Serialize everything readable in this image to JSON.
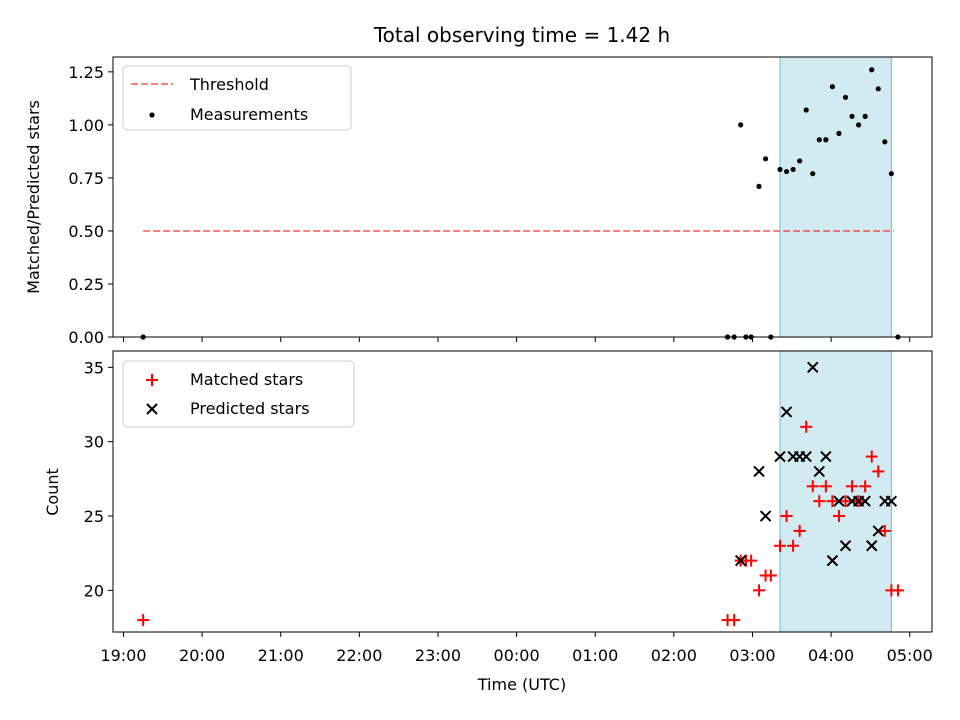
{
  "chart_data": [
    {
      "type": "scatter",
      "title": "Total observing time = 1.42 h",
      "ylabel": "Matched/Predicted stars",
      "xlabel": "",
      "xlim": [
        "18:52",
        "05:17"
      ],
      "ylim": [
        0,
        1.32
      ],
      "yticks": [
        "0.00",
        "0.25",
        "0.50",
        "0.75",
        "1.00",
        "1.25"
      ],
      "yticks_values": [
        0,
        0.25,
        0.5,
        0.75,
        1.0,
        1.25
      ],
      "legend_position": "upper-left",
      "highlight_span": {
        "from": "03:21",
        "to": "04:46",
        "color": "#add8e6"
      },
      "threshold": {
        "name": "Threshold",
        "value": 0.5,
        "from": "19:15",
        "to": "04:48",
        "color": "#ff0000",
        "style": "dashed"
      },
      "series": [
        {
          "name": "Measurements",
          "marker": "dot",
          "color": "#000000",
          "points": [
            [
              "19:15",
              0.0
            ],
            [
              "02:41",
              0.0
            ],
            [
              "02:46",
              0.0
            ],
            [
              "02:51",
              1.0
            ],
            [
              "02:55",
              0.0
            ],
            [
              "02:59",
              0.0
            ],
            [
              "03:05",
              0.71
            ],
            [
              "03:10",
              0.84
            ],
            [
              "03:14",
              0.0
            ],
            [
              "03:21",
              0.79
            ],
            [
              "03:26",
              0.78
            ],
            [
              "03:31",
              0.79
            ],
            [
              "03:36",
              0.83
            ],
            [
              "03:41",
              1.07
            ],
            [
              "03:46",
              0.77
            ],
            [
              "03:51",
              0.93
            ],
            [
              "03:56",
              0.93
            ],
            [
              "04:01",
              1.18
            ],
            [
              "04:06",
              0.96
            ],
            [
              "04:11",
              1.13
            ],
            [
              "04:16",
              1.04
            ],
            [
              "04:21",
              1.0
            ],
            [
              "04:26",
              1.04
            ],
            [
              "04:31",
              1.26
            ],
            [
              "04:36",
              1.17
            ],
            [
              "04:41",
              0.92
            ],
            [
              "04:46",
              0.77
            ],
            [
              "04:51",
              0.0
            ]
          ]
        }
      ]
    },
    {
      "type": "scatter",
      "title": "",
      "ylabel": "Count",
      "xlabel": "Time (UTC)",
      "xlim": [
        "18:52",
        "05:17"
      ],
      "ylim": [
        17.2,
        36.1
      ],
      "yticks": [
        "20",
        "25",
        "30",
        "35"
      ],
      "yticks_values": [
        20,
        25,
        30,
        35
      ],
      "xticks": [
        "19:00",
        "20:00",
        "21:00",
        "22:00",
        "23:00",
        "00:00",
        "01:00",
        "02:00",
        "03:00",
        "04:00",
        "05:00"
      ],
      "legend_position": "upper-left",
      "highlight_span": {
        "from": "03:21",
        "to": "04:46",
        "color": "#add8e6"
      },
      "series": [
        {
          "name": "Matched stars",
          "marker": "plus",
          "color": "#ff0000",
          "points": [
            [
              "19:15",
              18
            ],
            [
              "02:41",
              18
            ],
            [
              "02:46",
              18
            ],
            [
              "02:51",
              22
            ],
            [
              "02:55",
              22
            ],
            [
              "02:59",
              22
            ],
            [
              "03:05",
              20
            ],
            [
              "03:10",
              21
            ],
            [
              "03:14",
              21
            ],
            [
              "03:21",
              23
            ],
            [
              "03:26",
              25
            ],
            [
              "03:31",
              23
            ],
            [
              "03:36",
              24
            ],
            [
              "03:41",
              31
            ],
            [
              "03:46",
              27
            ],
            [
              "03:51",
              26
            ],
            [
              "03:56",
              27
            ],
            [
              "04:01",
              26
            ],
            [
              "04:06",
              25
            ],
            [
              "04:11",
              26
            ],
            [
              "04:16",
              27
            ],
            [
              "04:21",
              26
            ],
            [
              "04:26",
              27
            ],
            [
              "04:31",
              29
            ],
            [
              "04:36",
              28
            ],
            [
              "04:41",
              24
            ],
            [
              "04:46",
              20
            ],
            [
              "04:51",
              20
            ]
          ]
        },
        {
          "name": "Predicted stars",
          "marker": "x",
          "color": "#000000",
          "points": [
            [
              "02:51",
              22
            ],
            [
              "03:05",
              28
            ],
            [
              "03:10",
              25
            ],
            [
              "03:21",
              29
            ],
            [
              "03:26",
              32
            ],
            [
              "03:31",
              29
            ],
            [
              "03:36",
              29
            ],
            [
              "03:41",
              29
            ],
            [
              "03:46",
              35
            ],
            [
              "03:51",
              28
            ],
            [
              "03:56",
              29
            ],
            [
              "04:01",
              22
            ],
            [
              "04:06",
              26
            ],
            [
              "04:11",
              23
            ],
            [
              "04:16",
              26
            ],
            [
              "04:21",
              26
            ],
            [
              "04:26",
              26
            ],
            [
              "04:31",
              23
            ],
            [
              "04:36",
              24
            ],
            [
              "04:41",
              26
            ],
            [
              "04:46",
              26
            ]
          ]
        }
      ]
    }
  ]
}
